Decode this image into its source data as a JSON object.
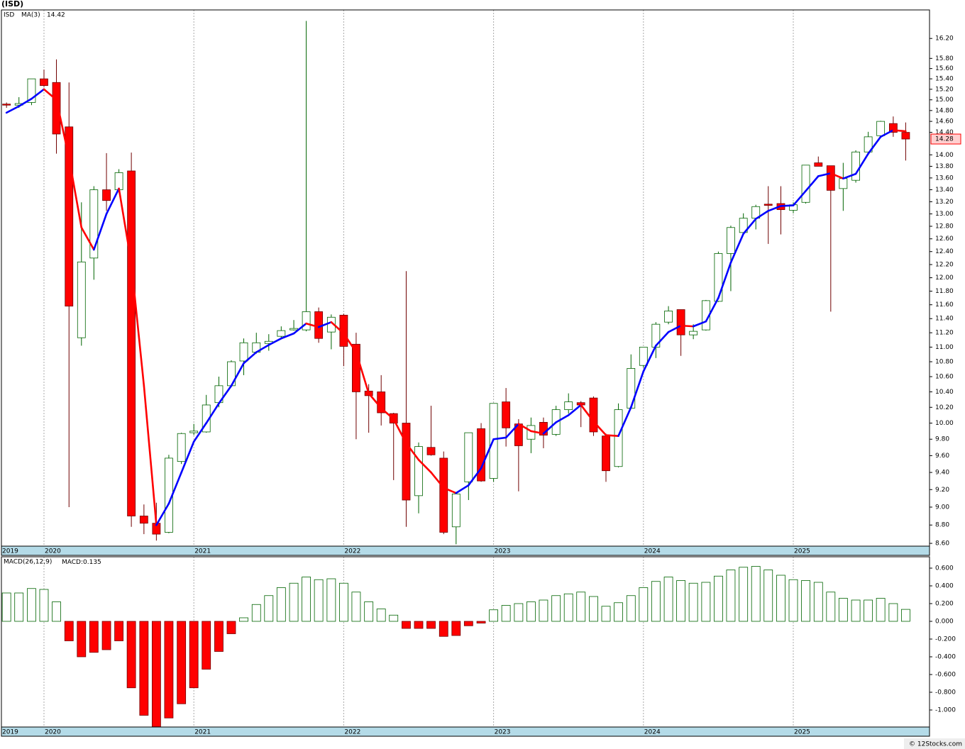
{
  "footer": "© 12Stocks.com",
  "chart_data": [
    {
      "type": "candlestick",
      "title": "(ISD)",
      "symbol": "ISD",
      "indicator": "MA(3)",
      "x": [
        2019.75,
        2019.833,
        2019.917,
        2020,
        2020.083,
        2020.167,
        2020.25,
        2020.333,
        2020.417,
        2020.5,
        2020.583,
        2020.667,
        2020.75,
        2020.833,
        2020.917,
        2021,
        2021.083,
        2021.167,
        2021.25,
        2021.333,
        2021.417,
        2021.5,
        2021.583,
        2021.667,
        2021.75,
        2021.833,
        2021.917,
        2022,
        2022.083,
        2022.167,
        2022.25,
        2022.333,
        2022.417,
        2022.5,
        2022.583,
        2022.667,
        2022.75,
        2022.833,
        2022.917,
        2023,
        2023.083,
        2023.167,
        2023.25,
        2023.333,
        2023.417,
        2023.5,
        2023.583,
        2023.667,
        2023.75,
        2023.833,
        2023.917,
        2024,
        2024.083,
        2024.167,
        2024.25,
        2024.333,
        2024.417,
        2024.5,
        2024.583,
        2024.667,
        2024.75,
        2024.833,
        2024.917,
        2025,
        2025.083,
        2025.167,
        2025.25,
        2025.333,
        2025.417,
        2025.5,
        2025.583,
        2025.667,
        2025.75
      ],
      "open": [
        14.92,
        14.9,
        14.95,
        15.4,
        15.33,
        14.5,
        11.13,
        12.3,
        13.4,
        13.4,
        13.72,
        8.9,
        8.82,
        8.72,
        9.53,
        9.88,
        9.89,
        10.26,
        10.48,
        10.81,
        10.93,
        11.05,
        11.15,
        11.24,
        11.24,
        11.5,
        11.21,
        11.45,
        11.04,
        10.41,
        10.4,
        10.12,
        10.0,
        9.13,
        9.7,
        9.57,
        8.78,
        9.29,
        9.93,
        9.33,
        10.27,
        9.99,
        9.8,
        10.01,
        9.86,
        10.17,
        10.26,
        10.32,
        9.84,
        9.47,
        10.19,
        10.75,
        11.0,
        11.35,
        11.53,
        11.17,
        11.24,
        11.65,
        12.37,
        12.7,
        12.93,
        13.16,
        13.17,
        13.06,
        13.19,
        13.86,
        13.81,
        13.42,
        13.56,
        14.05,
        14.34,
        14.56,
        14.4
      ],
      "high": [
        14.95,
        15.05,
        15.4,
        15.58,
        15.78,
        15.33,
        13.19,
        13.46,
        14.03,
        13.75,
        14.04,
        9.03,
        9.05,
        9.61,
        9.88,
        9.99,
        10.36,
        10.6,
        10.82,
        11.12,
        11.2,
        11.18,
        11.29,
        11.38,
        16.56,
        11.56,
        11.46,
        11.47,
        11.2,
        10.5,
        10.62,
        10.13,
        12.1,
        9.76,
        10.22,
        9.65,
        9.17,
        9.88,
        10.0,
        10.25,
        10.45,
        10.05,
        10.07,
        10.07,
        10.22,
        10.38,
        10.28,
        10.34,
        9.87,
        10.25,
        10.9,
        11.0,
        11.35,
        11.58,
        11.53,
        11.32,
        11.67,
        12.4,
        12.81,
        13.01,
        13.15,
        13.46,
        13.46,
        13.19,
        13.82,
        13.97,
        13.81,
        13.86,
        14.08,
        14.41,
        14.61,
        14.69,
        14.58
      ],
      "low": [
        14.85,
        14.85,
        14.9,
        15.25,
        14.02,
        9.0,
        11.02,
        11.97,
        13.05,
        13.35,
        8.78,
        8.7,
        8.63,
        8.71,
        9.5,
        9.85,
        9.88,
        10.2,
        10.46,
        10.62,
        10.91,
        10.95,
        11.13,
        11.23,
        11.22,
        11.06,
        10.97,
        10.74,
        9.8,
        9.88,
        9.97,
        9.31,
        8.78,
        8.93,
        9.6,
        8.7,
        8.59,
        9.08,
        9.29,
        9.29,
        9.71,
        9.18,
        9.63,
        9.69,
        9.84,
        10.12,
        9.95,
        9.84,
        9.29,
        9.46,
        10.18,
        10.72,
        10.85,
        11.32,
        10.88,
        11.11,
        11.23,
        11.64,
        11.8,
        12.68,
        12.75,
        12.52,
        12.67,
        13.01,
        13.17,
        13.8,
        11.5,
        13.05,
        13.52,
        14.03,
        14.31,
        14.32,
        13.9
      ],
      "close": [
        14.9,
        14.93,
        15.4,
        15.27,
        14.37,
        11.58,
        12.24,
        13.4,
        13.22,
        13.69,
        8.9,
        8.82,
        8.7,
        9.57,
        9.87,
        9.9,
        10.23,
        10.48,
        10.8,
        11.06,
        11.06,
        11.08,
        11.23,
        11.26,
        11.5,
        11.12,
        11.42,
        11.01,
        10.4,
        10.35,
        10.13,
        10.0,
        9.08,
        9.71,
        9.61,
        8.72,
        9.15,
        9.88,
        9.3,
        10.25,
        9.94,
        9.72,
        9.97,
        9.85,
        10.17,
        10.27,
        10.23,
        9.89,
        9.42,
        10.17,
        10.71,
        11.0,
        11.32,
        11.51,
        11.17,
        11.22,
        11.66,
        12.37,
        12.78,
        12.93,
        13.12,
        13.14,
        13.07,
        13.15,
        13.82,
        13.8,
        13.39,
        13.59,
        14.05,
        14.32,
        14.6,
        14.4,
        14.28
      ],
      "ma": [
        14.76,
        14.88,
        15.02,
        15.2,
        15.0,
        13.95,
        12.78,
        12.43,
        13.0,
        13.42,
        12.22,
        10.48,
        8.8,
        9.04,
        9.4,
        9.77,
        10.0,
        10.25,
        10.48,
        10.78,
        10.93,
        11.03,
        11.12,
        11.19,
        11.33,
        11.28,
        11.35,
        11.19,
        10.93,
        10.38,
        10.19,
        10.05,
        9.75,
        9.55,
        9.4,
        9.22,
        9.16,
        9.25,
        9.45,
        9.8,
        9.82,
        9.99,
        9.9,
        9.87,
        10.01,
        10.1,
        10.23,
        10.02,
        9.85,
        9.84,
        10.2,
        10.67,
        11.02,
        11.21,
        11.3,
        11.29,
        11.36,
        11.7,
        12.23,
        12.68,
        12.92,
        13.05,
        13.13,
        13.14,
        13.38,
        13.63,
        13.68,
        13.59,
        13.67,
        14.02,
        14.32,
        14.44,
        14.42
      ],
      "xlim": [
        2019.716,
        2025.909
      ],
      "xticks": [
        {
          "value": 2019.716,
          "label": "2019"
        },
        2020,
        2021,
        2022,
        2023,
        2024,
        2025
      ],
      "ylim": [
        8.57,
        16.79
      ],
      "log_scale": true,
      "yticks": [
        {
          "value": 8.6,
          "label": "8.60"
        },
        {
          "value": 8.8,
          "label": "8.80"
        },
        {
          "value": 9,
          "label": "9.00"
        },
        {
          "value": 9.2,
          "label": "9.20"
        },
        {
          "value": 9.4,
          "label": "9.40"
        },
        {
          "value": 9.6,
          "label": "9.60"
        },
        {
          "value": 9.8,
          "label": "9.80"
        },
        {
          "value": 10,
          "label": "10.00"
        },
        {
          "value": 10.2,
          "label": "10.20"
        },
        {
          "value": 10.4,
          "label": "10.40"
        },
        {
          "value": 10.6,
          "label": "10.60"
        },
        {
          "value": 10.8,
          "label": "10.80"
        },
        {
          "value": 11,
          "label": "11.00"
        },
        {
          "value": 11.2,
          "label": "11.20"
        },
        {
          "value": 11.4,
          "label": "11.40"
        },
        {
          "value": 11.6,
          "label": "11.60"
        },
        {
          "value": 11.8,
          "label": "11.80"
        },
        {
          "value": 12,
          "label": "12.00"
        },
        {
          "value": 12.2,
          "label": "12.20"
        },
        {
          "value": 12.4,
          "label": "12.40"
        },
        {
          "value": 12.6,
          "label": "12.60"
        },
        {
          "value": 12.8,
          "label": "12.80"
        },
        {
          "value": 13,
          "label": "13.00"
        },
        {
          "value": 13.2,
          "label": "13.20"
        },
        {
          "value": 13.4,
          "label": "13.40"
        },
        {
          "value": 13.6,
          "label": "13.60"
        },
        {
          "value": 13.8,
          "label": "13.80"
        },
        {
          "value": 14,
          "label": "14.00"
        },
        {
          "value": 14.4,
          "label": "14.40"
        },
        {
          "value": 14.6,
          "label": "14.60"
        },
        {
          "value": 14.8,
          "label": "14.80"
        },
        {
          "value": 15,
          "label": "15.00"
        },
        {
          "value": 15.2,
          "label": "15.20"
        },
        {
          "value": 15.4,
          "label": "15.40"
        },
        {
          "value": 15.6,
          "label": "15.60"
        },
        {
          "value": 15.8,
          "label": "15.80"
        },
        {
          "value": 16.2,
          "label": "16.20"
        }
      ],
      "grid": "x",
      "up_color": "#006400",
      "up_fill": "#ffffff",
      "down_color": "#ff0000",
      "down_edge": "#700000",
      "ma_up_color": "#0000ff",
      "ma_down_color": "#ff0000"
    },
    {
      "type": "bar",
      "name": "MACD(26,12,9)",
      "value_prefix": "MACD:",
      "x": [
        2019.75,
        2019.833,
        2019.917,
        2020,
        2020.083,
        2020.167,
        2020.25,
        2020.333,
        2020.417,
        2020.5,
        2020.583,
        2020.667,
        2020.75,
        2020.833,
        2020.917,
        2021,
        2021.083,
        2021.167,
        2021.25,
        2021.333,
        2021.417,
        2021.5,
        2021.583,
        2021.667,
        2021.75,
        2021.833,
        2021.917,
        2022,
        2022.083,
        2022.167,
        2022.25,
        2022.333,
        2022.417,
        2022.5,
        2022.583,
        2022.667,
        2022.75,
        2022.833,
        2022.917,
        2023,
        2023.083,
        2023.167,
        2023.25,
        2023.333,
        2023.417,
        2023.5,
        2023.583,
        2023.667,
        2023.75,
        2023.833,
        2023.917,
        2024,
        2024.083,
        2024.167,
        2024.25,
        2024.333,
        2024.417,
        2024.5,
        2024.583,
        2024.667,
        2024.75,
        2024.833,
        2024.917,
        2025,
        2025.083,
        2025.167,
        2025.25,
        2025.333,
        2025.417,
        2025.5,
        2025.583,
        2025.667,
        2025.75
      ],
      "values": [
        0.32,
        0.32,
        0.37,
        0.36,
        0.22,
        -0.22,
        -0.4,
        -0.35,
        -0.32,
        -0.22,
        -0.75,
        -1.06,
        -1.19,
        -1.09,
        -0.93,
        -0.75,
        -0.54,
        -0.34,
        -0.14,
        0.04,
        0.19,
        0.29,
        0.38,
        0.43,
        0.5,
        0.47,
        0.48,
        0.43,
        0.33,
        0.22,
        0.14,
        0.07,
        -0.08,
        -0.08,
        -0.08,
        -0.17,
        -0.16,
        -0.05,
        -0.02,
        0.13,
        0.18,
        0.2,
        0.22,
        0.24,
        0.29,
        0.31,
        0.33,
        0.28,
        0.17,
        0.21,
        0.29,
        0.38,
        0.45,
        0.5,
        0.46,
        0.43,
        0.44,
        0.51,
        0.58,
        0.61,
        0.62,
        0.58,
        0.52,
        0.47,
        0.46,
        0.44,
        0.33,
        0.26,
        0.24,
        0.24,
        0.26,
        0.2,
        0.135
      ],
      "xlim": [
        2019.716,
        2025.909
      ],
      "xticks": [
        {
          "value": 2019.716,
          "label": "2019"
        },
        2020,
        2021,
        2022,
        2023,
        2024,
        2025
      ],
      "ylim": [
        -1.192,
        0.728
      ],
      "yticks": [
        {
          "value": 0.6,
          "label": "0.600"
        },
        {
          "value": 0.4,
          "label": "0.400"
        },
        {
          "value": 0.2,
          "label": "0.200"
        },
        {
          "value": 0,
          "label": "0.000"
        },
        {
          "value": -0.2,
          "label": "-0.200"
        },
        {
          "value": -0.4,
          "label": "-0.400"
        },
        {
          "value": -0.6,
          "label": "-0.600"
        },
        {
          "value": -0.8,
          "label": "-0.800"
        },
        {
          "value": -1,
          "label": "-1.000"
        }
      ],
      "grid": "x",
      "up_color": "#006400",
      "up_fill": "#ffffff",
      "down_color": "#ff0000",
      "down_edge": "#700000"
    }
  ]
}
